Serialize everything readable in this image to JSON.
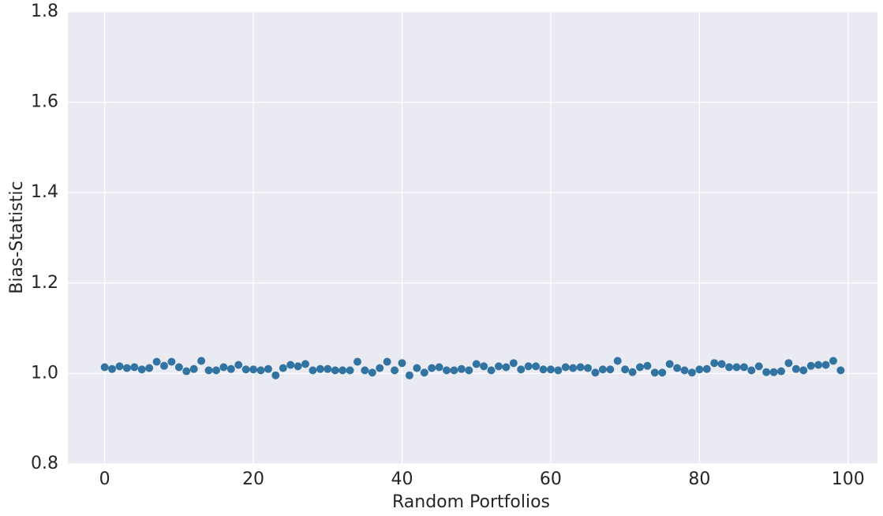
{
  "chart_data": {
    "type": "scatter",
    "x_label": "Random Portfolios",
    "y_label": "Bias-Statistic",
    "x": [
      0,
      1,
      2,
      3,
      4,
      5,
      6,
      7,
      8,
      9,
      10,
      11,
      12,
      13,
      14,
      15,
      16,
      17,
      18,
      19,
      20,
      21,
      22,
      23,
      24,
      25,
      26,
      27,
      28,
      29,
      30,
      31,
      32,
      33,
      34,
      35,
      36,
      37,
      38,
      39,
      40,
      41,
      42,
      43,
      44,
      45,
      46,
      47,
      48,
      49,
      50,
      51,
      52,
      53,
      54,
      55,
      56,
      57,
      58,
      59,
      60,
      61,
      62,
      63,
      64,
      65,
      66,
      67,
      68,
      69,
      70,
      71,
      72,
      73,
      74,
      75,
      76,
      77,
      78,
      79,
      80,
      81,
      82,
      83,
      84,
      85,
      86,
      87,
      88,
      89,
      90,
      91,
      92,
      93,
      94,
      95,
      96,
      97,
      98,
      99
    ],
    "values": [
      1.014,
      1.01,
      1.016,
      1.012,
      1.014,
      1.009,
      1.012,
      1.026,
      1.017,
      1.026,
      1.014,
      1.005,
      1.01,
      1.028,
      1.007,
      1.007,
      1.014,
      1.01,
      1.019,
      1.009,
      1.009,
      1.007,
      1.01,
      0.996,
      1.012,
      1.019,
      1.016,
      1.021,
      1.007,
      1.01,
      1.01,
      1.007,
      1.007,
      1.007,
      1.026,
      1.007,
      1.002,
      1.012,
      1.026,
      1.007,
      1.023,
      0.996,
      1.012,
      1.002,
      1.012,
      1.014,
      1.007,
      1.007,
      1.01,
      1.007,
      1.021,
      1.016,
      1.007,
      1.016,
      1.014,
      1.023,
      1.009,
      1.016,
      1.016,
      1.009,
      1.009,
      1.007,
      1.014,
      1.012,
      1.014,
      1.012,
      1.002,
      1.009,
      1.009,
      1.028,
      1.009,
      1.003,
      1.014,
      1.017,
      1.002,
      1.002,
      1.021,
      1.012,
      1.007,
      1.002,
      1.009,
      1.01,
      1.023,
      1.021,
      1.014,
      1.014,
      1.014,
      1.007,
      1.016,
      1.003,
      1.003,
      1.005,
      1.023,
      1.01,
      1.007,
      1.017,
      1.019,
      1.019,
      1.028,
      1.007
    ],
    "color": "#3274a1",
    "xlim": [
      -4.95,
      103.95
    ],
    "xticks": [
      0,
      20,
      40,
      60,
      80,
      100
    ],
    "ylim": [
      0.8,
      1.8
    ],
    "yticks": [
      0.8,
      {
        "value": 1,
        "label": "1.0"
      },
      1.2,
      1.4,
      1.6,
      1.8
    ],
    "grid": true
  }
}
